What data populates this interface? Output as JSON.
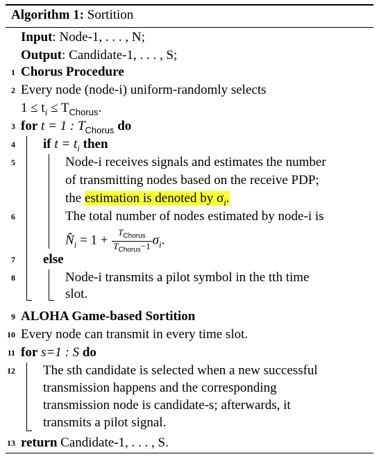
{
  "algorithm": {
    "label": "Algorithm 1:",
    "title": "Sortition"
  },
  "input": {
    "keyword": "Input",
    "text": ": Node-1, . . . , N;"
  },
  "output": {
    "keyword": "Output",
    "text": ": Candidate-1, . . . , S;"
  },
  "lines": {
    "l1": {
      "num": "1",
      "text": "Chorus Procedure"
    },
    "l2": {
      "num": "2",
      "text": "Every node (node-i) uniform-randomly selects",
      "cont": "1 ≤ t",
      "cont_sub": "i",
      "cont2": " ≤ T",
      "cont2_sub": "Chorus",
      "cont_end": "."
    },
    "l3": {
      "num": "3",
      "kw1": "for",
      "mid": " t = 1 : T",
      "sub": "Chorus",
      "kw2": " do"
    },
    "l4": {
      "num": "4",
      "kw1": "if",
      "mid": " t = t",
      "sub": "i",
      "kw2": " then"
    },
    "l5": {
      "num": "5",
      "a": "Node-i receives signals and estimates the number",
      "b": "of transmitting nodes based on the receive PDP;",
      "c_pre": "the ",
      "c_hl": "estimation is denoted by σ",
      "c_sub": "i",
      "c_end": "."
    },
    "l6": {
      "num": "6",
      "a": "The total number of nodes estimated by node-i is",
      "b_pre": "N̂",
      "b_sub": "i",
      "b_mid": " = 1 + ",
      "frac_num": "T",
      "frac_num_sub": "Chorus",
      "frac_den": "T",
      "frac_den_sub": "Chorus",
      "frac_den_end": "−1",
      "b_end": "σ",
      "b_end_sub": "i",
      "b_dot": "."
    },
    "l7": {
      "num": "7",
      "text": "else"
    },
    "l8": {
      "num": "8",
      "a": "Node-i transmits a pilot symbol in the tth time",
      "b": "slot."
    },
    "l9": {
      "num": "9",
      "text": "ALOHA Game-based Sortition"
    },
    "l10": {
      "num": "10",
      "text": "Every node can transmit in every time slot."
    },
    "l11": {
      "num": "11",
      "kw1": "for",
      "mid": " s=1 : S",
      "kw2": " do"
    },
    "l12": {
      "num": "12",
      "a": "The sth candidate is selected when a new successful",
      "b": "transmission happens and the corresponding",
      "c": "transmission node is candidate-s; afterwards, it",
      "d": "transmits a pilot signal."
    },
    "l13": {
      "num": "13",
      "kw": "return",
      "text": " Candidate-1, . . . , S."
    }
  },
  "colors": {
    "highlight": "#ffff33"
  }
}
